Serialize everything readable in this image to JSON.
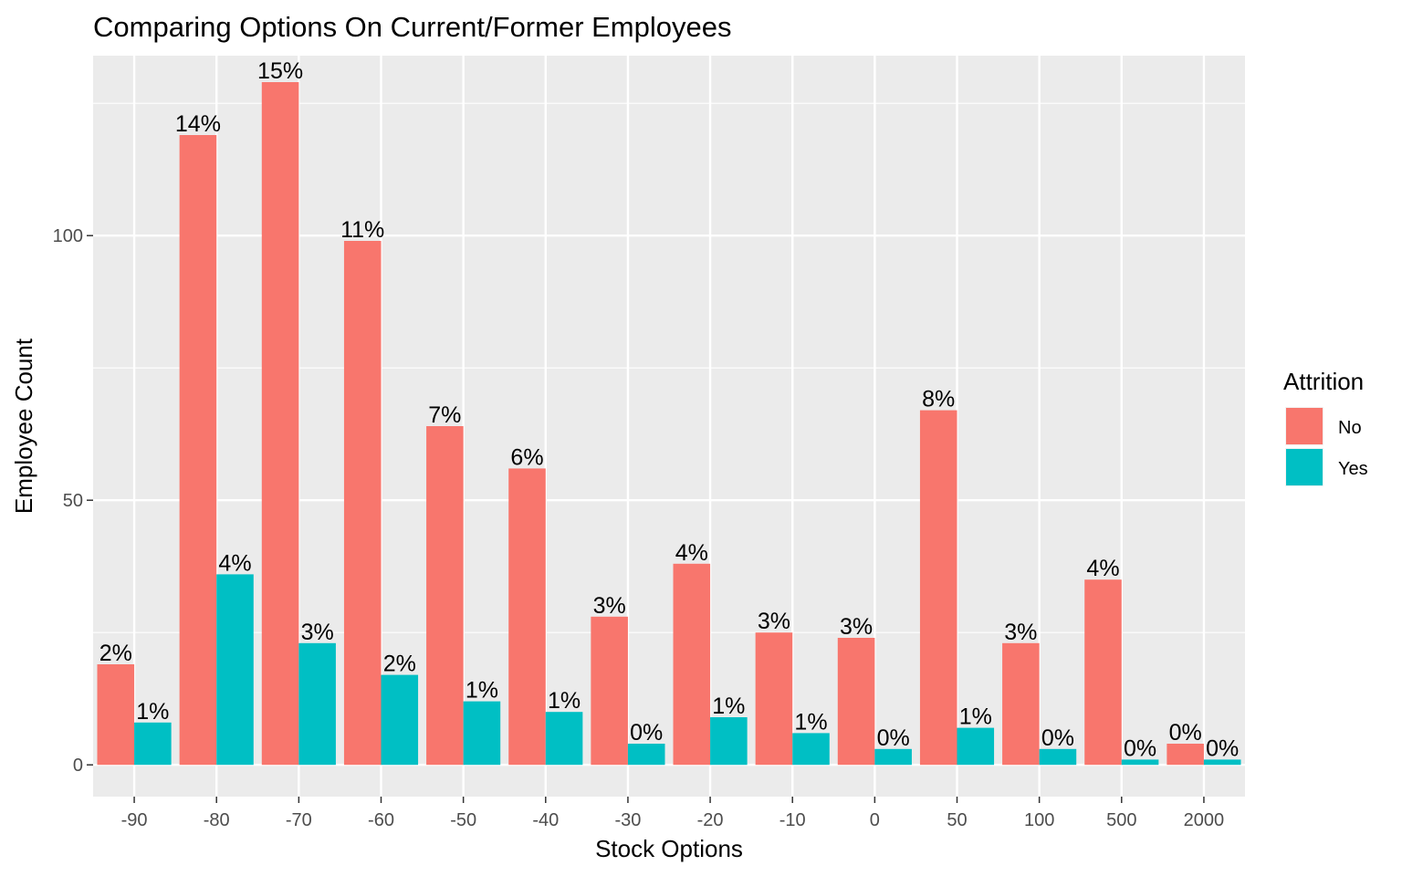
{
  "chart_data": {
    "type": "bar",
    "title": "Comparing Options On Current/Former Employees",
    "xlabel": "Stock Options",
    "ylabel": "Employee Count",
    "categories": [
      "-90",
      "-80",
      "-70",
      "-60",
      "-50",
      "-40",
      "-30",
      "-20",
      "-10",
      "0",
      "50",
      "100",
      "500",
      "2000"
    ],
    "ylim": [
      -6,
      134
    ],
    "yticks": [
      0,
      50,
      100
    ],
    "grid": true,
    "legend": {
      "title": "Attrition",
      "position": "right"
    },
    "series": [
      {
        "name": "No",
        "color": "#F8766D",
        "values": [
          19,
          119,
          129,
          99,
          64,
          56,
          28,
          38,
          25,
          24,
          67,
          23,
          35,
          4
        ],
        "labels": [
          "2%",
          "14%",
          "15%",
          "11%",
          "7%",
          "6%",
          "3%",
          "4%",
          "3%",
          "3%",
          "8%",
          "3%",
          "4%",
          "0%"
        ]
      },
      {
        "name": "Yes",
        "color": "#00BFC4",
        "values": [
          8,
          36,
          23,
          17,
          12,
          10,
          4,
          9,
          6,
          3,
          7,
          3,
          1,
          1
        ],
        "labels": [
          "1%",
          "4%",
          "3%",
          "2%",
          "1%",
          "1%",
          "0%",
          "1%",
          "1%",
          "0%",
          "1%",
          "0%",
          "0%",
          "0%"
        ]
      }
    ]
  }
}
